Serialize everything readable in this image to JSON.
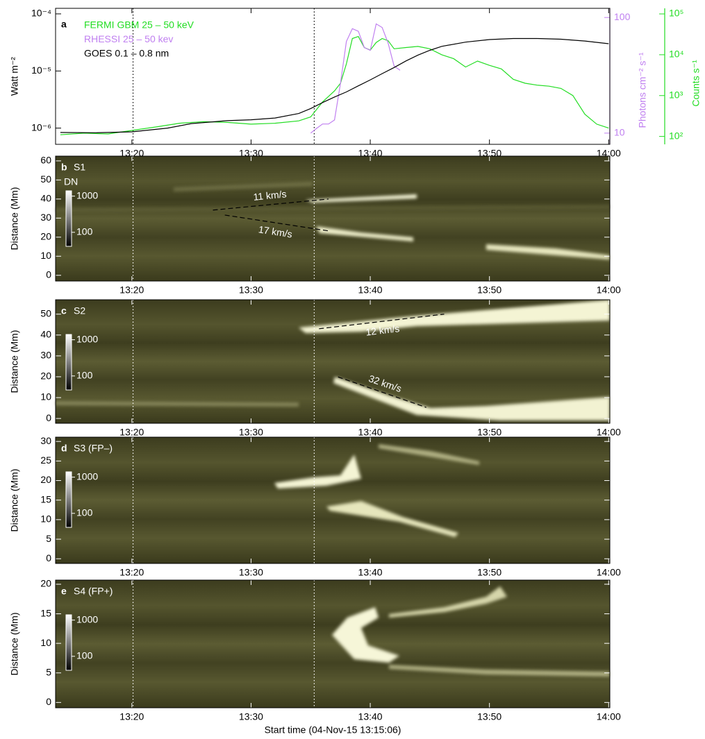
{
  "chart_data": [
    {
      "type": "line",
      "label": "a",
      "xlim": [
        13.6,
        60.1
      ],
      "xticks": [
        {
          "value": 20,
          "label": "13:20"
        },
        {
          "value": 30,
          "label": "13:30"
        },
        {
          "value": 40,
          "label": "13:40"
        },
        {
          "value": 50,
          "label": "13:50"
        },
        {
          "value": 60,
          "label": "14:00"
        }
      ],
      "vlines": [
        20.1,
        35.3
      ],
      "log": true,
      "ylabel": "Watt m⁻²",
      "ylim": [
        5.2e-07,
        0.000125
      ],
      "yticks": [
        {
          "value": 0.0001,
          "label": "10⁻⁴"
        },
        {
          "value": 1e-05,
          "label": "10⁻⁵"
        },
        {
          "value": 1e-06,
          "label": "10⁻⁶"
        }
      ],
      "y2label": "Photons cm⁻² s⁻¹",
      "y2lim": [
        8.0,
        120
      ],
      "y2ticks": [
        100,
        10
      ],
      "y3label": "Counts s⁻¹",
      "y3lim": [
        64,
        137000
      ],
      "y3ticks": [
        {
          "value": 100000,
          "label": "10⁵"
        },
        {
          "value": 10000,
          "label": "10⁴"
        },
        {
          "value": 1000,
          "label": "10³"
        },
        {
          "value": 100,
          "label": "10²"
        }
      ],
      "series": [
        {
          "name": "FERMI GBM 25 – 50 keV",
          "color": "#22dd22",
          "axis": "y3",
          "x": [
            14,
            16,
            18,
            20,
            22,
            24,
            26,
            28,
            30,
            32,
            34,
            35,
            36,
            37,
            37.5,
            38,
            38.5,
            39,
            39.5,
            40,
            40.5,
            41,
            41.5,
            42,
            43,
            44,
            45,
            46,
            47,
            48,
            49,
            50,
            51,
            52,
            53,
            54,
            55,
            56,
            57,
            58,
            59,
            60
          ],
          "values": [
            110,
            120,
            115,
            140,
            170,
            210,
            230,
            220,
            200,
            210,
            240,
            300,
            700,
            1300,
            2000,
            6000,
            25000,
            28000,
            15000,
            13000,
            20000,
            25000,
            22000,
            14000,
            15000,
            16000,
            14000,
            10000,
            8000,
            5000,
            7000,
            5500,
            4500,
            2500,
            2000,
            1800,
            1700,
            1500,
            1000,
            350,
            200,
            160
          ]
        },
        {
          "name": "RHESSI 25 – 50 kev",
          "color": "#c080f0",
          "axis": "y2",
          "x": [
            35,
            35.5,
            36,
            36.5,
            37,
            37.5,
            38,
            38.5,
            39,
            39.5,
            40,
            40.5,
            41,
            41.5,
            42,
            42.5
          ],
          "values": [
            10,
            11,
            12,
            12,
            13,
            27,
            62,
            80,
            76,
            55,
            52,
            88,
            82,
            60,
            38,
            35
          ]
        },
        {
          "name": "GOES 0.1 – 0.8 nm",
          "color": "#000000",
          "axis": "y",
          "x": [
            14,
            17,
            20,
            23,
            25,
            28,
            30,
            32,
            34,
            35,
            36,
            37,
            38,
            39,
            40,
            41,
            42,
            43,
            44,
            45,
            46,
            48,
            50,
            52,
            54,
            56,
            58,
            60
          ],
          "values": [
            8.4e-07,
            8.3e-07,
            8.6e-07,
            1e-06,
            1.2e-06,
            1.35e-06,
            1.4e-06,
            1.5e-06,
            1.8e-06,
            2.2e-06,
            2.8e-06,
            3.5e-06,
            4.3e-06,
            5.5e-06,
            7e-06,
            9e-06,
            1.15e-05,
            1.5e-05,
            1.9e-05,
            2.3e-05,
            2.7e-05,
            3.2e-05,
            3.55e-05,
            3.7e-05,
            3.7e-05,
            3.6e-05,
            3.35e-05,
            3e-05
          ]
        }
      ]
    },
    {
      "type": "image",
      "label": "b",
      "title": "S1",
      "xlim": [
        13.6,
        60.1
      ],
      "xticks": [
        {
          "value": 20,
          "label": "13:20"
        },
        {
          "value": 30,
          "label": "13:30"
        },
        {
          "value": 40,
          "label": "13:40"
        },
        {
          "value": 50,
          "label": "13:50"
        },
        {
          "value": 60,
          "label": "14:00"
        }
      ],
      "vlines": [
        20.1,
        35.3
      ],
      "ylabel": "Distance (Mm)",
      "ylim": [
        -3,
        62.5
      ],
      "yticks": [
        0,
        10,
        20,
        30,
        40,
        50,
        60
      ],
      "colorbar": {
        "label": "DN",
        "lim": [
          41,
          1400
        ],
        "ticks": [
          1000,
          100
        ]
      },
      "fits": [
        {
          "label": "11 km/s",
          "x": [
            26.8,
            36.5
          ],
          "y": [
            34.2,
            40
          ]
        },
        {
          "label": "17 km/s",
          "x": [
            27.8,
            36.5
          ],
          "y": [
            31.6,
            23.3
          ]
        }
      ]
    },
    {
      "type": "image",
      "label": "c",
      "title": "S2",
      "xlim": [
        13.6,
        60.1
      ],
      "xticks": [
        {
          "value": 20,
          "label": "13:20"
        },
        {
          "value": 30,
          "label": "13:30"
        },
        {
          "value": 40,
          "label": "13:40"
        },
        {
          "value": 50,
          "label": "13:50"
        },
        {
          "value": 60,
          "label": "14:00"
        }
      ],
      "vlines": [
        20.1,
        35.3
      ],
      "ylabel": "Distance (Mm)",
      "ylim": [
        -2.3,
        56.9
      ],
      "yticks": [
        0,
        10,
        20,
        30,
        40,
        50
      ],
      "colorbar": {
        "lim": [
          41,
          1400
        ],
        "ticks": [
          1000,
          100
        ]
      },
      "fits": [
        {
          "label": "12 km/s",
          "x": [
            35.7,
            46.2
          ],
          "y": [
            43,
            50
          ]
        },
        {
          "label": "32 km/s",
          "x": [
            37.3,
            44.7
          ],
          "y": [
            19.9,
            5.3
          ]
        }
      ]
    },
    {
      "type": "image",
      "label": "d",
      "title": "S3 (FP–)",
      "xlim": [
        13.6,
        60.1
      ],
      "xticks": [
        {
          "value": 20,
          "label": "13:20"
        },
        {
          "value": 30,
          "label": "13:30"
        },
        {
          "value": 40,
          "label": "13:40"
        },
        {
          "value": 50,
          "label": "13:50"
        },
        {
          "value": 60,
          "label": "14:00"
        }
      ],
      "vlines": [
        20.1,
        35.3
      ],
      "ylabel": "Distance (Mm)",
      "ylim": [
        -1.2,
        31.1
      ],
      "yticks": [
        0,
        5,
        10,
        15,
        20,
        25,
        30
      ],
      "colorbar": {
        "lim": [
          41,
          1400
        ],
        "ticks": [
          1000,
          100
        ]
      }
    },
    {
      "type": "image",
      "label": "e",
      "title": "S4 (FP+)",
      "xlim": [
        13.6,
        60.1
      ],
      "xticks": [
        {
          "value": 20,
          "label": "13:20"
        },
        {
          "value": 30,
          "label": "13:30"
        },
        {
          "value": 40,
          "label": "13:40"
        },
        {
          "value": 50,
          "label": "13:50"
        },
        {
          "value": 60,
          "label": "14:00"
        }
      ],
      "vlines": [
        20.1,
        35.3
      ],
      "ylabel": "Distance (Mm)",
      "ylim": [
        -0.9,
        20.7
      ],
      "yticks": [
        0,
        5,
        10,
        15,
        20
      ],
      "colorbar": {
        "lim": [
          41,
          1400
        ],
        "ticks": [
          1000,
          100
        ]
      },
      "xlabel": "Start time (04-Nov-15 13:15:06)"
    }
  ]
}
